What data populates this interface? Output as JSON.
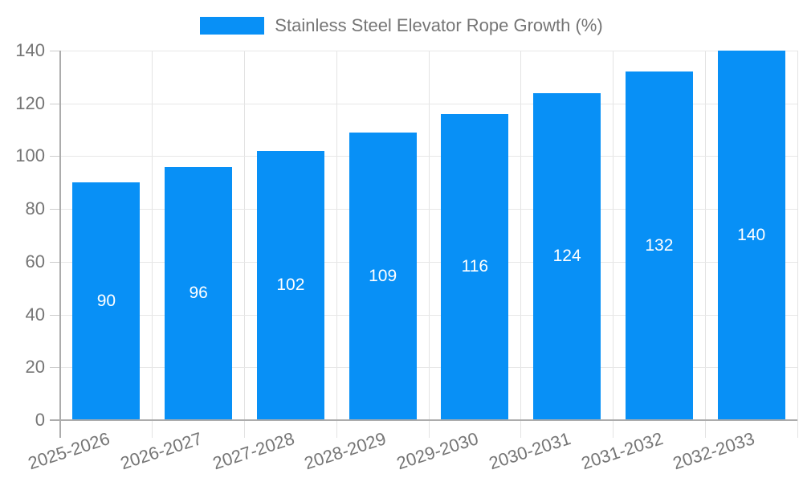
{
  "chart_data": {
    "type": "bar",
    "title": "Stainless Steel Elevator Rope Growth (%)",
    "categories": [
      "2025-2026",
      "2026-2027",
      "2027-2028",
      "2028-2029",
      "2029-2030",
      "2030-2031",
      "2031-2032",
      "2032-2033"
    ],
    "values": [
      90,
      96,
      102,
      109,
      116,
      124,
      132,
      140
    ],
    "xlabel": "",
    "ylabel": "",
    "ylim": [
      0,
      140
    ],
    "y_ticks": [
      0,
      20,
      40,
      60,
      80,
      100,
      120,
      140
    ],
    "grid": true,
    "legend_position": "top-center",
    "value_label_position": "inside-center",
    "bar_color": "#0890f6",
    "value_label_color": "#ffffff",
    "axis_text_color": "#757575",
    "grid_color": "#e7e7e7",
    "axis_line_color": "#acacac"
  },
  "legend": {
    "items": [
      {
        "label": "Stainless Steel Elevator Rope Growth (%)",
        "color": "#0890f6"
      }
    ]
  }
}
